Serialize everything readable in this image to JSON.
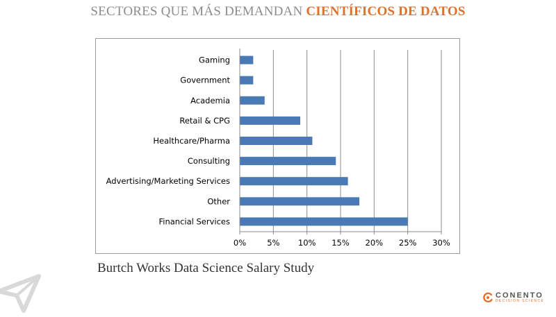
{
  "header": {
    "title_part1": "SECTORES QUE MÁS DEMANDAN",
    "title_part2": "CIENTÍFICOS DE DATOS"
  },
  "colors": {
    "bar": "#4a7ab5",
    "grid": "#8a8a8a",
    "title_accent": "#e0702a",
    "title_gray": "#8c8c8c"
  },
  "chart_data": {
    "type": "bar",
    "orientation": "horizontal",
    "categories": [
      "Gaming",
      "Government",
      "Academia",
      "Retail & CPG",
      "Healthcare/Pharma",
      "Consulting",
      "Advertising/Marketing Services",
      "Other",
      "Financial Services"
    ],
    "values": [
      2,
      2,
      3.7,
      9,
      10.8,
      14.3,
      16.1,
      17.8,
      25
    ],
    "xlim": [
      0,
      30
    ],
    "xticks": [
      0,
      5,
      10,
      15,
      20,
      25,
      30
    ],
    "xtick_labels": [
      "0%",
      "5%",
      "10%",
      "15%",
      "20%",
      "25%",
      "30%"
    ],
    "grid": true,
    "legend": "none"
  },
  "source": "Burtch Works Data Science Salary Study",
  "brand": {
    "name": "CONENTO",
    "tagline": "DECISION SCIENCE",
    "icon": "conento-swirl-icon"
  },
  "decoration": {
    "icon": "paper-plane-icon"
  }
}
